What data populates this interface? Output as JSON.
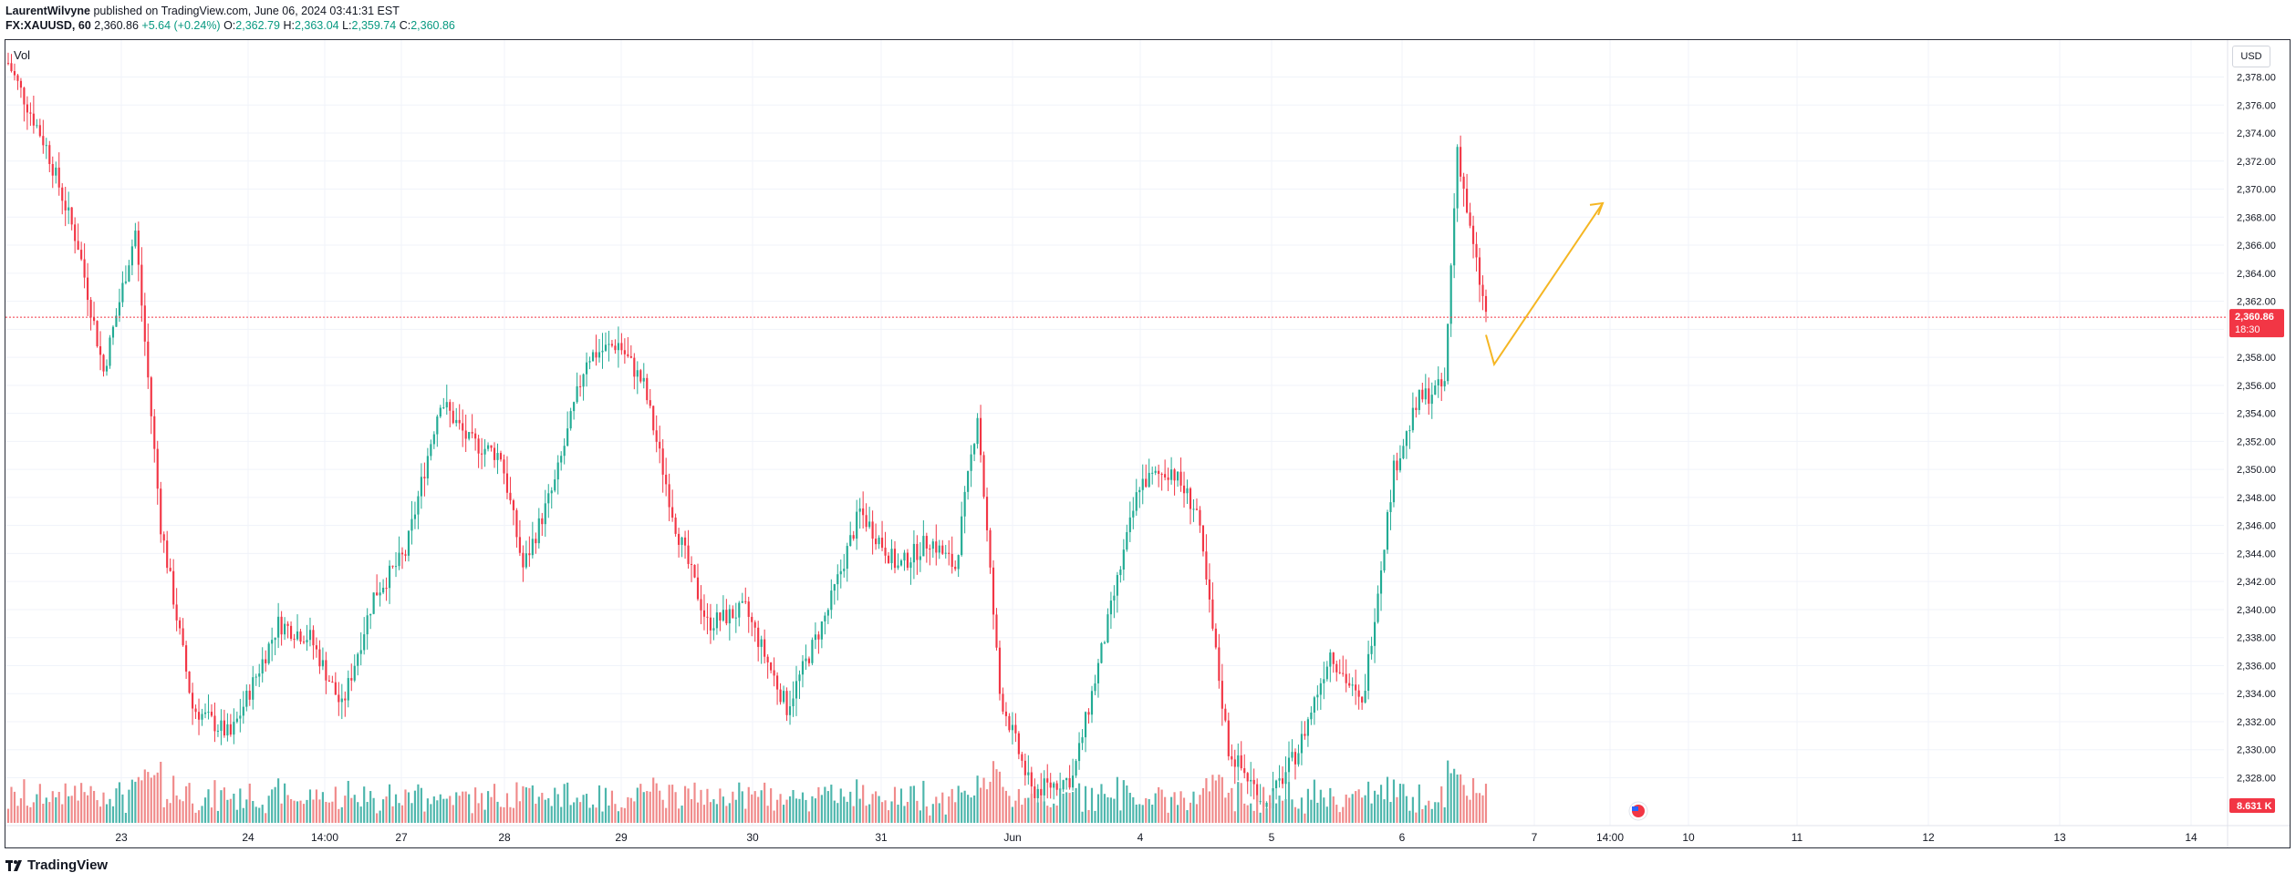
{
  "header": {
    "author": "LaurentWilvyne",
    "published": "published on TradingView.com, June 06, 2024 03:41:31 EST",
    "symbol": "FX:XAUUSD, 60",
    "last": "2,360.86",
    "change": "+5.64 (+0.24%)",
    "o_label": "O:",
    "o": "2,362.79",
    "h_label": "H:",
    "h": "2,363.04",
    "l_label": "L:",
    "l": "2,359.74",
    "c_label": "C:",
    "c": "2,360.86"
  },
  "vol_label": "Vol",
  "currency_button": "USD",
  "price_badge": {
    "price": "2,360.86",
    "countdown": "18:30",
    "color": "#f23645"
  },
  "volume_badge": {
    "value": "8.631 K",
    "color": "#f23645"
  },
  "footer": {
    "brand": "TradingView"
  },
  "colors": {
    "up": "#22ab94",
    "down": "#f23645",
    "vol_up": "#4db6ac",
    "vol_down": "#f08a8a",
    "arrow": "#f5b623",
    "priceline": "#f23645"
  },
  "chart_data": {
    "type": "candlestick",
    "symbol": "XAUUSD",
    "interval": "60",
    "ylim": [
      2325,
      2380
    ],
    "y_ticks": [
      "2,378.00",
      "2,376.00",
      "2,374.00",
      "2,372.00",
      "2,370.00",
      "2,368.00",
      "2,366.00",
      "2,364.00",
      "2,362.00",
      "2,360.00",
      "2,358.00",
      "2,356.00",
      "2,354.00",
      "2,352.00",
      "2,350.00",
      "2,348.00",
      "2,346.00",
      "2,344.00",
      "2,342.00",
      "2,340.00",
      "2,338.00",
      "2,336.00",
      "2,334.00",
      "2,332.00",
      "2,330.00",
      "2,328.00"
    ],
    "x_ticks": [
      "23",
      "24",
      "14:00",
      "27",
      "28",
      "29",
      "30",
      "31",
      "Jun",
      "4",
      "5",
      "6",
      "7",
      "14:00",
      "10",
      "11",
      "12",
      "13",
      "14"
    ],
    "last_price": 2360.86,
    "anchor_points": [
      {
        "t": 0,
        "p": 2379
      },
      {
        "t": 12,
        "p": 2373
      },
      {
        "t": 22,
        "p": 2366
      },
      {
        "t": 30,
        "p": 2357
      },
      {
        "t": 40,
        "p": 2367
      },
      {
        "t": 48,
        "p": 2346
      },
      {
        "t": 58,
        "p": 2333
      },
      {
        "t": 70,
        "p": 2331
      },
      {
        "t": 85,
        "p": 2339
      },
      {
        "t": 95,
        "p": 2338
      },
      {
        "t": 105,
        "p": 2333
      },
      {
        "t": 115,
        "p": 2341
      },
      {
        "t": 125,
        "p": 2344
      },
      {
        "t": 136,
        "p": 2355
      },
      {
        "t": 145,
        "p": 2352
      },
      {
        "t": 155,
        "p": 2351
      },
      {
        "t": 162,
        "p": 2343
      },
      {
        "t": 172,
        "p": 2349
      },
      {
        "t": 182,
        "p": 2358
      },
      {
        "t": 192,
        "p": 2359
      },
      {
        "t": 200,
        "p": 2356
      },
      {
        "t": 210,
        "p": 2346
      },
      {
        "t": 220,
        "p": 2339
      },
      {
        "t": 232,
        "p": 2340
      },
      {
        "t": 245,
        "p": 2333
      },
      {
        "t": 258,
        "p": 2340
      },
      {
        "t": 268,
        "p": 2347
      },
      {
        "t": 280,
        "p": 2343
      },
      {
        "t": 290,
        "p": 2345
      },
      {
        "t": 298,
        "p": 2343
      },
      {
        "t": 305,
        "p": 2354
      },
      {
        "t": 312,
        "p": 2334
      },
      {
        "t": 322,
        "p": 2327
      },
      {
        "t": 335,
        "p": 2328
      },
      {
        "t": 345,
        "p": 2338
      },
      {
        "t": 356,
        "p": 2349
      },
      {
        "t": 366,
        "p": 2350
      },
      {
        "t": 374,
        "p": 2347
      },
      {
        "t": 384,
        "p": 2330
      },
      {
        "t": 396,
        "p": 2326
      },
      {
        "t": 406,
        "p": 2330
      },
      {
        "t": 416,
        "p": 2337
      },
      {
        "t": 426,
        "p": 2333
      },
      {
        "t": 436,
        "p": 2350
      },
      {
        "t": 444,
        "p": 2355
      },
      {
        "t": 452,
        "p": 2356
      },
      {
        "t": 456,
        "p": 2373
      },
      {
        "t": 460,
        "p": 2367
      },
      {
        "t": 465,
        "p": 2361
      }
    ],
    "drawing": {
      "type": "arrow",
      "points": [
        [
          2369.5,
          0
        ],
        [
          2357.5,
          0
        ],
        [
          2369,
          0
        ]
      ]
    }
  }
}
